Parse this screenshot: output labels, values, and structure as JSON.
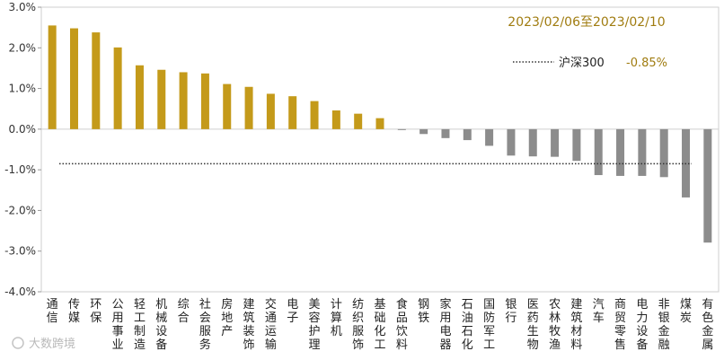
{
  "chart_data": {
    "type": "bar",
    "date_range": "2023/02/06至2023/02/10",
    "categories": [
      "通信",
      "传媒",
      "环保",
      "公用事业",
      "轻工制造",
      "机械设备",
      "综合",
      "社会服务",
      "房地产",
      "建筑装饰",
      "交通运输",
      "电子",
      "美容护理",
      "计算机",
      "纺织服饰",
      "基础化工",
      "食品饮料",
      "钢铁",
      "家用电器",
      "石油石化",
      "国防军工",
      "银行",
      "医药生物",
      "农林牧渔",
      "建筑材料",
      "汽车",
      "商贸零售",
      "电力设备",
      "非银金融",
      "煤炭",
      "有色金属"
    ],
    "values": [
      2.55,
      2.48,
      2.38,
      2.01,
      1.57,
      1.46,
      1.4,
      1.37,
      1.11,
      1.04,
      0.87,
      0.81,
      0.69,
      0.46,
      0.38,
      0.27,
      -0.02,
      -0.12,
      -0.22,
      -0.27,
      -0.41,
      -0.65,
      -0.67,
      -0.68,
      -0.78,
      -1.13,
      -1.15,
      -1.15,
      -1.18,
      -1.68,
      -2.79
    ],
    "ylim": [
      -4,
      3
    ],
    "yticks": [
      "-4.0%",
      "-3.0%",
      "-2.0%",
      "-1.0%",
      "0.0%",
      "1.0%",
      "2.0%",
      "3.0%"
    ],
    "reference": {
      "name": "沪深300",
      "label": "-0.85%",
      "value": -0.85
    },
    "colors": {
      "positive": "#c49a1a",
      "negative": "#8c8c8c",
      "date_text": "#a07c10",
      "reference_line": "#333333"
    },
    "legend_position": "top-right",
    "grid": false
  },
  "watermark": "大数跨境"
}
